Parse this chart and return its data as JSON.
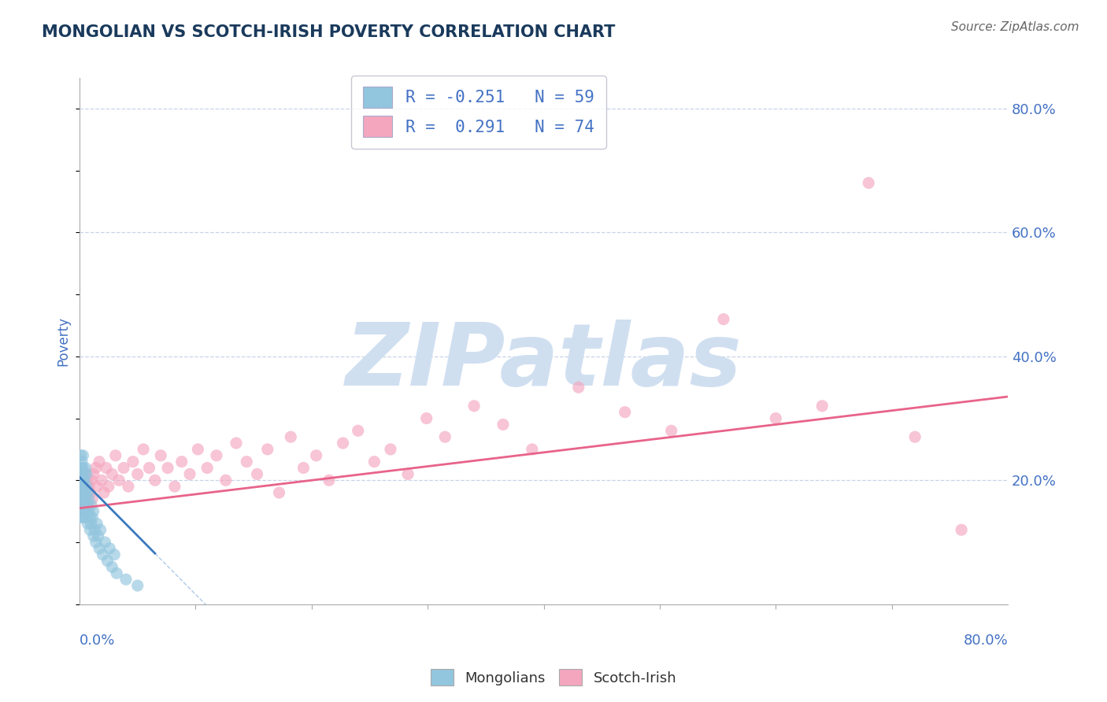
{
  "title": "MONGOLIAN VS SCOTCH-IRISH POVERTY CORRELATION CHART",
  "source": "Source: ZipAtlas.com",
  "ylabel": "Poverty",
  "xlim": [
    0.0,
    0.8
  ],
  "ylim": [
    0.0,
    0.85
  ],
  "mongolian_R": -0.251,
  "mongolian_N": 59,
  "scotch_irish_R": 0.291,
  "scotch_irish_N": 74,
  "mongolian_color": "#92c5de",
  "scotch_irish_color": "#f4a6bf",
  "mongolian_line_color": "#3a7abf",
  "scotch_irish_line_color": "#e8638a",
  "background_color": "#ffffff",
  "grid_color": "#c8d4e8",
  "title_color": "#1a3a5c",
  "axis_label_color": "#4472c4",
  "watermark": "ZIPatlas",
  "watermark_color": "#d0dff0",
  "legend_R_color": "#4472c4",
  "mongolian_x": [
    0.001,
    0.001,
    0.001,
    0.001,
    0.001,
    0.002,
    0.002,
    0.002,
    0.002,
    0.002,
    0.002,
    0.002,
    0.002,
    0.003,
    0.003,
    0.003,
    0.003,
    0.003,
    0.003,
    0.003,
    0.004,
    0.004,
    0.004,
    0.004,
    0.004,
    0.005,
    0.005,
    0.005,
    0.005,
    0.006,
    0.006,
    0.006,
    0.007,
    0.007,
    0.007,
    0.008,
    0.008,
    0.009,
    0.009,
    0.01,
    0.01,
    0.011,
    0.012,
    0.012,
    0.013,
    0.014,
    0.015,
    0.016,
    0.017,
    0.018,
    0.02,
    0.022,
    0.024,
    0.026,
    0.028,
    0.03,
    0.032,
    0.04,
    0.05
  ],
  "mongolian_y": [
    0.18,
    0.21,
    0.24,
    0.14,
    0.17,
    0.2,
    0.22,
    0.16,
    0.19,
    0.23,
    0.15,
    0.18,
    0.21,
    0.17,
    0.2,
    0.22,
    0.14,
    0.19,
    0.16,
    0.24,
    0.18,
    0.21,
    0.15,
    0.2,
    0.16,
    0.18,
    0.22,
    0.14,
    0.17,
    0.19,
    0.15,
    0.21,
    0.16,
    0.18,
    0.13,
    0.17,
    0.15,
    0.14,
    0.12,
    0.16,
    0.13,
    0.14,
    0.11,
    0.15,
    0.12,
    0.1,
    0.13,
    0.11,
    0.09,
    0.12,
    0.08,
    0.1,
    0.07,
    0.09,
    0.06,
    0.08,
    0.05,
    0.04,
    0.03
  ],
  "scotch_irish_x": [
    0.001,
    0.001,
    0.002,
    0.002,
    0.002,
    0.003,
    0.003,
    0.003,
    0.004,
    0.004,
    0.005,
    0.005,
    0.006,
    0.006,
    0.007,
    0.008,
    0.009,
    0.01,
    0.011,
    0.012,
    0.014,
    0.015,
    0.017,
    0.019,
    0.021,
    0.023,
    0.025,
    0.028,
    0.031,
    0.034,
    0.038,
    0.042,
    0.046,
    0.05,
    0.055,
    0.06,
    0.065,
    0.07,
    0.076,
    0.082,
    0.088,
    0.095,
    0.102,
    0.11,
    0.118,
    0.126,
    0.135,
    0.144,
    0.153,
    0.162,
    0.172,
    0.182,
    0.193,
    0.204,
    0.215,
    0.227,
    0.24,
    0.254,
    0.268,
    0.283,
    0.299,
    0.315,
    0.34,
    0.365,
    0.39,
    0.43,
    0.47,
    0.51,
    0.555,
    0.6,
    0.64,
    0.68,
    0.72,
    0.76
  ],
  "scotch_irish_y": [
    0.17,
    0.19,
    0.16,
    0.21,
    0.18,
    0.15,
    0.2,
    0.17,
    0.19,
    0.16,
    0.18,
    0.21,
    0.17,
    0.2,
    0.16,
    0.19,
    0.18,
    0.2,
    0.17,
    0.21,
    0.22,
    0.19,
    0.23,
    0.2,
    0.18,
    0.22,
    0.19,
    0.21,
    0.24,
    0.2,
    0.22,
    0.19,
    0.23,
    0.21,
    0.25,
    0.22,
    0.2,
    0.24,
    0.22,
    0.19,
    0.23,
    0.21,
    0.25,
    0.22,
    0.24,
    0.2,
    0.26,
    0.23,
    0.21,
    0.25,
    0.18,
    0.27,
    0.22,
    0.24,
    0.2,
    0.26,
    0.28,
    0.23,
    0.25,
    0.21,
    0.3,
    0.27,
    0.32,
    0.29,
    0.25,
    0.35,
    0.31,
    0.28,
    0.46,
    0.3,
    0.32,
    0.68,
    0.27,
    0.12
  ],
  "si_line_x0": 0.0,
  "si_line_y0": 0.155,
  "si_line_x1": 0.8,
  "si_line_y1": 0.335,
  "mong_line_x0": 0.0,
  "mong_line_y0": 0.205,
  "mong_line_x1": 0.065,
  "mong_line_y1": 0.082
}
